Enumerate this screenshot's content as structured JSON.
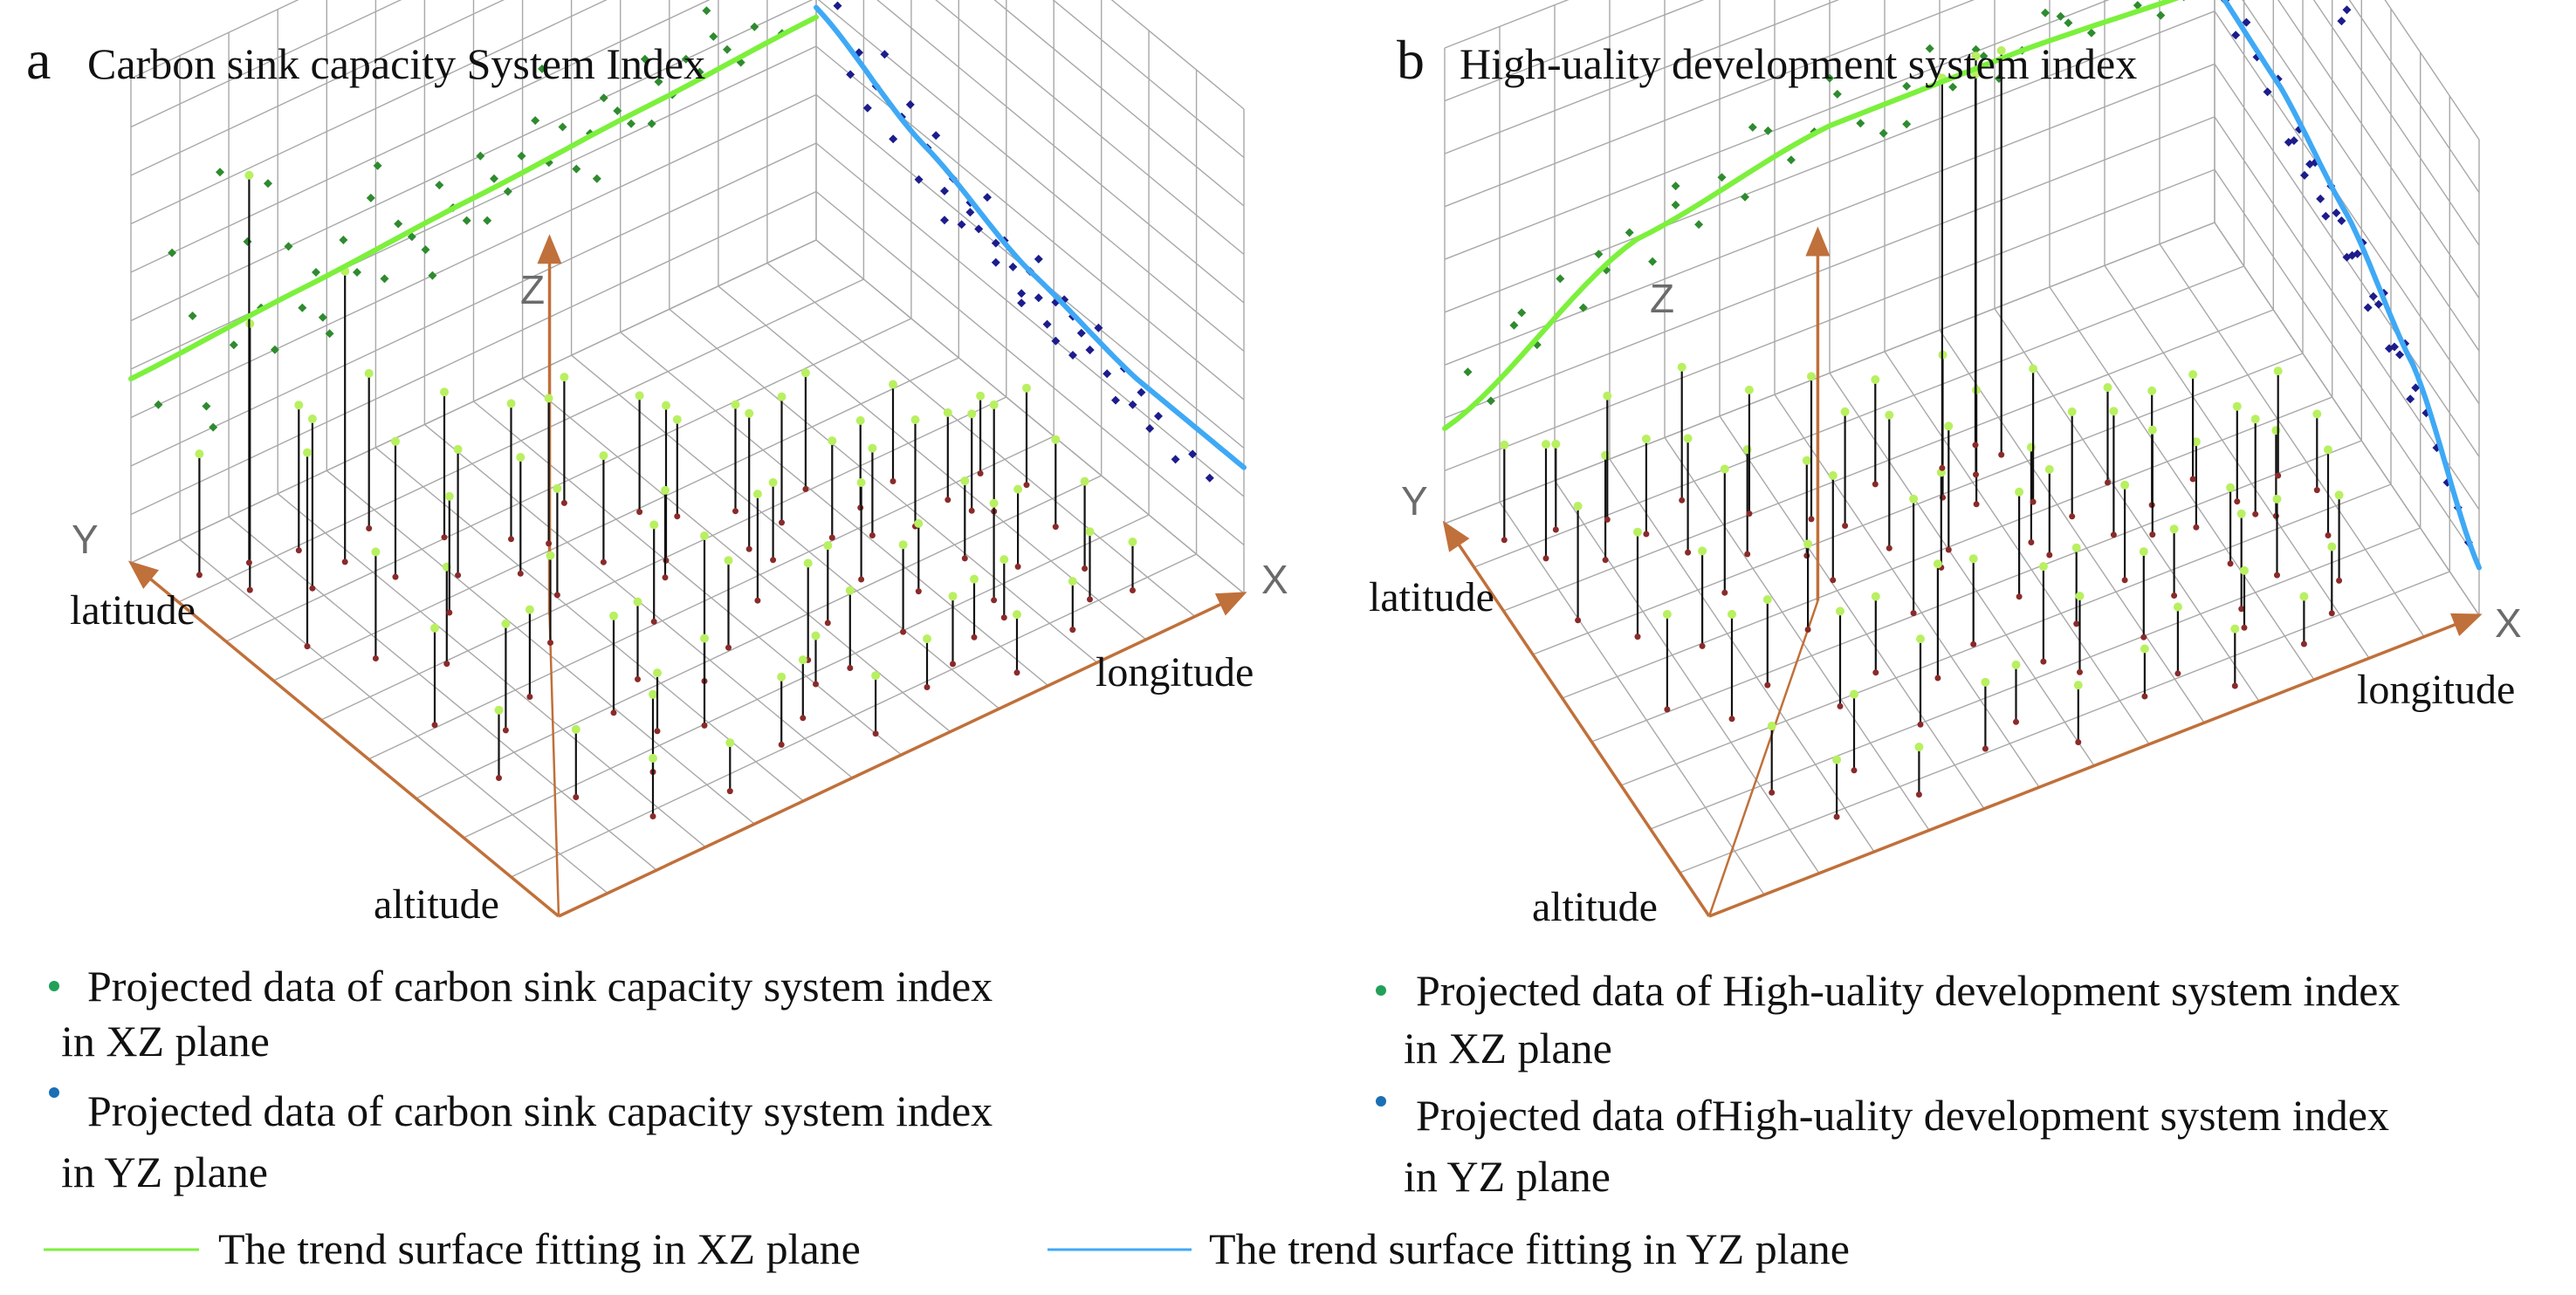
{
  "figure": {
    "panels": [
      {
        "letter": "a",
        "title": "Carbon sink capacity System Index",
        "axis_letters": {
          "x": "X",
          "y": "Y",
          "z": "Z"
        },
        "axis_labels": {
          "latitude": "latitude",
          "longitude": "longitude",
          "altitude": "altitude"
        },
        "legend": [
          {
            "text1": "Projected data of carbon sink capacity system index",
            "text2": "in XZ plane",
            "dot_color": "#22a05a"
          },
          {
            "text1": "Projected data of carbon sink capacity system index",
            "text2": "in YZ plane",
            "dot_color": "#1a6fb5"
          }
        ]
      },
      {
        "letter": "b",
        "title": "High-uality development system index",
        "axis_letters": {
          "x": "X",
          "y": "Y",
          "z": "Z"
        },
        "axis_labels": {
          "latitude": "latitude",
          "longitude": "longitude",
          "altitude": "altitude"
        },
        "legend": [
          {
            "text1": "Projected data of High-uality development system index",
            "text2": "in XZ plane",
            "dot_color": "#22a05a"
          },
          {
            "text1": "Projected data ofHigh-uality development system index",
            "text2": "in YZ plane",
            "dot_color": "#1a6fb5"
          }
        ]
      }
    ],
    "bottom_legend": [
      {
        "text": "The trend surface fitting in XZ plane",
        "color": "#7cf03c"
      },
      {
        "text": "The trend surface fitting in YZ plane",
        "color": "#3fa9f5"
      }
    ]
  },
  "colors": {
    "grid": "#a8a8a8",
    "axis": "#c0703a",
    "stem": "#111111",
    "xz_point": "#2e8b2e",
    "yz_point": "#1c1c8c",
    "top_point": "#b8f060",
    "base_point": "#8a2a2a",
    "xz_trend": "#7cf03c",
    "yz_trend": "#3fa9f5"
  },
  "chart_data": [
    {
      "type": "scatter",
      "title": "Carbon sink capacity System Index",
      "xlabel": "longitude",
      "ylabel": "latitude",
      "zlabel": "altitude",
      "xlim": [
        0,
        1
      ],
      "ylim": [
        0,
        1
      ],
      "zlim": [
        0,
        1
      ],
      "grid": true,
      "xz_trend": {
        "name": "The trend surface fitting in XZ plane",
        "t": [
          0,
          0.25,
          0.5,
          0.75,
          1
        ],
        "z": [
          0.38,
          0.4,
          0.42,
          0.44,
          0.46
        ]
      },
      "yz_trend": {
        "name": "The trend surface fitting in YZ plane",
        "t": [
          0,
          0.25,
          0.5,
          0.75,
          1
        ],
        "z": [
          0.48,
          0.38,
          0.3,
          0.26,
          0.26
        ]
      },
      "xz_projection": {
        "name": "Projected data of carbon sink capacity system index in XZ plane",
        "t": [
          0.04,
          0.06,
          0.09,
          0.11,
          0.13,
          0.15,
          0.17,
          0.19,
          0.21,
          0.23,
          0.25,
          0.27,
          0.29,
          0.31,
          0.33,
          0.35,
          0.37,
          0.39,
          0.41,
          0.43,
          0.45,
          0.47,
          0.49,
          0.51,
          0.53,
          0.55,
          0.57,
          0.59,
          0.61,
          0.63,
          0.65,
          0.67,
          0.69,
          0.71,
          0.73,
          0.75,
          0.77,
          0.79,
          0.81,
          0.83,
          0.85,
          0.87,
          0.89,
          0.91,
          0.93,
          0.95,
          0.12,
          0.2,
          0.28,
          0.36,
          0.44,
          0.52,
          0.6,
          0.68,
          0.76,
          0.84
        ],
        "z": [
          0.3,
          0.6,
          0.45,
          0.25,
          0.72,
          0.35,
          0.55,
          0.4,
          0.3,
          0.5,
          0.36,
          0.42,
          0.28,
          0.46,
          0.38,
          0.52,
          0.34,
          0.44,
          0.4,
          0.36,
          0.48,
          0.42,
          0.38,
          0.5,
          0.44,
          0.4,
          0.46,
          0.52,
          0.42,
          0.48,
          0.38,
          0.44,
          0.5,
          0.46,
          0.42,
          0.54,
          0.48,
          0.44,
          0.5,
          0.46,
          0.52,
          0.48,
          0.44,
          0.5,
          0.56,
          0.46,
          0.2,
          0.65,
          0.32,
          0.58,
          0.3,
          0.36,
          0.62,
          0.34,
          0.4,
          0.58
        ]
      },
      "yz_projection": {
        "name": "Projected data of carbon sink capacity system index in YZ plane",
        "t": [
          0.02,
          0.05,
          0.08,
          0.1,
          0.12,
          0.14,
          0.16,
          0.18,
          0.2,
          0.22,
          0.24,
          0.26,
          0.28,
          0.3,
          0.32,
          0.34,
          0.36,
          0.38,
          0.4,
          0.42,
          0.44,
          0.46,
          0.48,
          0.5,
          0.52,
          0.54,
          0.56,
          0.58,
          0.6,
          0.62,
          0.64,
          0.66,
          0.68,
          0.7,
          0.72,
          0.74,
          0.76,
          0.78,
          0.8,
          0.84,
          0.88,
          0.92,
          0.3,
          0.36,
          0.42,
          0.48,
          0.52,
          0.56,
          0.6,
          0.64,
          0.05,
          0.1,
          0.15
        ],
        "z": [
          0.88,
          0.52,
          0.4,
          0.46,
          0.36,
          0.42,
          0.5,
          0.34,
          0.4,
          0.44,
          0.3,
          0.38,
          0.42,
          0.32,
          0.36,
          0.28,
          0.34,
          0.3,
          0.38,
          0.26,
          0.32,
          0.28,
          0.24,
          0.3,
          0.34,
          0.22,
          0.28,
          0.3,
          0.2,
          0.26,
          0.24,
          0.3,
          0.22,
          0.18,
          0.26,
          0.2,
          0.24,
          0.18,
          0.22,
          0.16,
          0.2,
          0.18,
          0.26,
          0.32,
          0.3,
          0.22,
          0.26,
          0.2,
          0.28,
          0.24,
          0.66,
          0.58,
          0.62
        ]
      },
      "samples": {
        "x": [
          0.05,
          0.08,
          0.11,
          0.14,
          0.17,
          0.2,
          0.23,
          0.26,
          0.29,
          0.32,
          0.35,
          0.38,
          0.41,
          0.44,
          0.47,
          0.5,
          0.53,
          0.56,
          0.59,
          0.62,
          0.65,
          0.68,
          0.71,
          0.74,
          0.77,
          0.8,
          0.83,
          0.86,
          0.89,
          0.92,
          0.07,
          0.12,
          0.18,
          0.24,
          0.3,
          0.36,
          0.42,
          0.48,
          0.54,
          0.6,
          0.66,
          0.72,
          0.78,
          0.84,
          0.9,
          0.1,
          0.16,
          0.22,
          0.28,
          0.34,
          0.4,
          0.46,
          0.52,
          0.58,
          0.64,
          0.7,
          0.76,
          0.82,
          0.88,
          0.15,
          0.25,
          0.35,
          0.45,
          0.55,
          0.65,
          0.75,
          0.85,
          0.2,
          0.3,
          0.4,
          0.5,
          0.6,
          0.7,
          0.8,
          0.1,
          0.3,
          0.5,
          0.7,
          0.9
        ],
        "y": [
          0.92,
          0.85,
          0.9,
          0.8,
          0.88,
          0.82,
          0.75,
          0.86,
          0.7,
          0.78,
          0.65,
          0.72,
          0.68,
          0.6,
          0.74,
          0.55,
          0.66,
          0.62,
          0.5,
          0.58,
          0.52,
          0.45,
          0.56,
          0.48,
          0.4,
          0.5,
          0.42,
          0.36,
          0.44,
          0.38,
          0.7,
          0.62,
          0.55,
          0.64,
          0.5,
          0.58,
          0.45,
          0.52,
          0.4,
          0.46,
          0.35,
          0.42,
          0.3,
          0.38,
          0.28,
          0.45,
          0.38,
          0.42,
          0.32,
          0.36,
          0.3,
          0.34,
          0.25,
          0.3,
          0.22,
          0.28,
          0.2,
          0.24,
          0.18,
          0.2,
          0.18,
          0.22,
          0.15,
          0.2,
          0.12,
          0.16,
          0.12,
          0.1,
          0.08,
          0.12,
          0.06,
          0.1,
          0.05,
          0.08,
          0.3,
          0.25,
          0.2,
          0.15,
          0.1
        ],
        "z": [
          0.25,
          0.55,
          0.8,
          0.35,
          0.3,
          0.6,
          0.28,
          0.32,
          0.26,
          0.3,
          0.24,
          0.28,
          0.3,
          0.22,
          0.26,
          0.32,
          0.24,
          0.2,
          0.28,
          0.22,
          0.26,
          0.2,
          0.24,
          0.18,
          0.22,
          0.2,
          0.18,
          0.22,
          0.16,
          0.2,
          0.4,
          0.22,
          0.2,
          0.24,
          0.18,
          0.22,
          0.2,
          0.18,
          0.22,
          0.16,
          0.2,
          0.18,
          0.16,
          0.2,
          0.18,
          0.2,
          0.22,
          0.18,
          0.2,
          0.16,
          0.3,
          0.18,
          0.2,
          0.16,
          0.18,
          0.14,
          0.2,
          0.16,
          0.18,
          0.14,
          0.16,
          0.18,
          0.12,
          0.16,
          0.14,
          0.12,
          0.14,
          0.12,
          0.1,
          0.14,
          0.12,
          0.1,
          0.12,
          0.1,
          0.14,
          0.12,
          0.1,
          0.12,
          0.1
        ]
      }
    },
    {
      "type": "scatter",
      "title": "High-uality development system index",
      "xlabel": "longitude",
      "ylabel": "latitude",
      "zlabel": "altitude",
      "xlim": [
        0,
        1
      ],
      "ylim": [
        0,
        1
      ],
      "zlim": [
        0,
        1
      ],
      "grid": true,
      "xz_trend": {
        "name": "The trend surface fitting in XZ plane",
        "t": [
          0,
          0.25,
          0.5,
          0.75,
          1
        ],
        "z": [
          0.2,
          0.44,
          0.52,
          0.52,
          0.5
        ]
      },
      "yz_trend": {
        "name": "The trend surface fitting in YZ plane",
        "t": [
          0,
          0.25,
          0.5,
          0.75,
          1
        ],
        "z": [
          0.5,
          0.49,
          0.43,
          0.32,
          0.1
        ]
      },
      "xz_projection": {
        "name": "Projected data of High-uality development system index in XZ plane",
        "t": [
          0.03,
          0.06,
          0.09,
          0.12,
          0.15,
          0.18,
          0.21,
          0.24,
          0.27,
          0.3,
          0.33,
          0.36,
          0.39,
          0.42,
          0.45,
          0.48,
          0.51,
          0.54,
          0.57,
          0.6,
          0.63,
          0.66,
          0.69,
          0.72,
          0.75,
          0.78,
          0.81,
          0.84,
          0.87,
          0.9,
          0.93,
          0.96,
          0.1,
          0.2,
          0.3,
          0.4,
          0.5,
          0.6,
          0.7,
          0.8,
          0.74,
          0.78,
          0.82
        ],
        "z": [
          0.3,
          0.22,
          0.36,
          0.3,
          0.42,
          0.34,
          0.4,
          0.46,
          0.38,
          0.48,
          0.42,
          0.5,
          0.44,
          0.56,
          0.48,
          0.52,
          0.58,
          0.5,
          0.46,
          0.54,
          0.6,
          0.5,
          0.56,
          0.48,
          0.52,
          0.58,
          0.54,
          0.5,
          0.56,
          0.52,
          0.48,
          0.5,
          0.38,
          0.44,
          0.52,
          0.58,
          0.62,
          0.46,
          0.54,
          0.56,
          0.95,
          0.92,
          0.88
        ]
      },
      "yz_projection": {
        "name": "Projected data ofHigh-uality development system index in YZ plane",
        "t": [
          0.04,
          0.08,
          0.12,
          0.16,
          0.2,
          0.24,
          0.28,
          0.32,
          0.36,
          0.4,
          0.44,
          0.48,
          0.52,
          0.56,
          0.6,
          0.64,
          0.68,
          0.72,
          0.76,
          0.8,
          0.84,
          0.88,
          0.92,
          0.96,
          0.3,
          0.34,
          0.38,
          0.42,
          0.46,
          0.5,
          0.54,
          0.58,
          0.62,
          0.66,
          0.7,
          0.74,
          0.4,
          0.45,
          0.48,
          0.5
        ],
        "z": [
          0.5,
          0.46,
          0.52,
          0.48,
          0.44,
          0.5,
          0.4,
          0.46,
          0.42,
          0.38,
          0.44,
          0.4,
          0.36,
          0.42,
          0.34,
          0.38,
          0.3,
          0.34,
          0.28,
          0.26,
          0.22,
          0.18,
          0.16,
          0.12,
          0.42,
          0.38,
          0.44,
          0.36,
          0.4,
          0.34,
          0.38,
          0.3,
          0.34,
          0.28,
          0.3,
          0.24,
          0.95,
          0.9,
          0.82,
          0.86
        ]
      },
      "samples": {
        "x": [
          0.05,
          0.08,
          0.11,
          0.14,
          0.17,
          0.2,
          0.23,
          0.26,
          0.29,
          0.32,
          0.35,
          0.38,
          0.41,
          0.44,
          0.47,
          0.5,
          0.53,
          0.56,
          0.59,
          0.62,
          0.65,
          0.68,
          0.71,
          0.74,
          0.77,
          0.8,
          0.83,
          0.86,
          0.89,
          0.92,
          0.07,
          0.12,
          0.18,
          0.24,
          0.3,
          0.36,
          0.42,
          0.48,
          0.54,
          0.6,
          0.66,
          0.72,
          0.78,
          0.84,
          0.9,
          0.1,
          0.16,
          0.22,
          0.28,
          0.34,
          0.4,
          0.46,
          0.52,
          0.58,
          0.64,
          0.7,
          0.76,
          0.82,
          0.88,
          0.15,
          0.25,
          0.35,
          0.45,
          0.55,
          0.65,
          0.75,
          0.85,
          0.2,
          0.3,
          0.4,
          0.5,
          0.6,
          0.7,
          0.8,
          0.55,
          0.58,
          0.6,
          0.62
        ],
        "y": [
          0.92,
          0.85,
          0.9,
          0.8,
          0.88,
          0.82,
          0.75,
          0.86,
          0.7,
          0.78,
          0.65,
          0.72,
          0.68,
          0.6,
          0.74,
          0.55,
          0.66,
          0.62,
          0.5,
          0.58,
          0.52,
          0.45,
          0.56,
          0.48,
          0.4,
          0.5,
          0.42,
          0.36,
          0.44,
          0.38,
          0.7,
          0.62,
          0.55,
          0.64,
          0.5,
          0.58,
          0.45,
          0.52,
          0.4,
          0.46,
          0.35,
          0.42,
          0.3,
          0.38,
          0.28,
          0.45,
          0.38,
          0.42,
          0.32,
          0.36,
          0.3,
          0.34,
          0.25,
          0.3,
          0.22,
          0.28,
          0.2,
          0.24,
          0.18,
          0.2,
          0.18,
          0.22,
          0.15,
          0.2,
          0.12,
          0.16,
          0.12,
          0.1,
          0.08,
          0.12,
          0.06,
          0.1,
          0.05,
          0.08,
          0.72,
          0.68,
          0.74,
          0.7
        ],
        "z": [
          0.2,
          0.24,
          0.18,
          0.22,
          0.26,
          0.2,
          0.24,
          0.28,
          0.22,
          0.26,
          0.2,
          0.3,
          0.24,
          0.28,
          0.22,
          0.26,
          0.3,
          0.24,
          0.2,
          0.28,
          0.22,
          0.26,
          0.2,
          0.24,
          0.18,
          0.22,
          0.2,
          0.18,
          0.22,
          0.16,
          0.24,
          0.22,
          0.2,
          0.26,
          0.18,
          0.22,
          0.24,
          0.2,
          0.22,
          0.18,
          0.2,
          0.22,
          0.16,
          0.2,
          0.18,
          0.2,
          0.22,
          0.18,
          0.2,
          0.16,
          0.24,
          0.18,
          0.2,
          0.16,
          0.18,
          0.14,
          0.2,
          0.16,
          0.18,
          0.14,
          0.16,
          0.18,
          0.12,
          0.16,
          0.14,
          0.12,
          0.14,
          0.12,
          0.1,
          0.14,
          0.12,
          0.1,
          0.12,
          0.1,
          0.82,
          0.88,
          0.78,
          0.85
        ]
      }
    }
  ]
}
